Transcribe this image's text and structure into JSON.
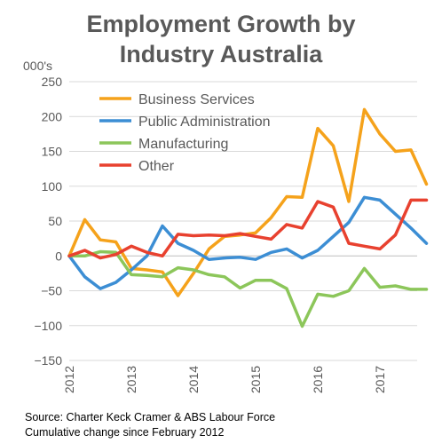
{
  "chart_data": {
    "type": "line",
    "title_line1": "Employment Growth by",
    "title_line2": "Industry Australia",
    "y_unit_label": "000's",
    "ylim": [
      -150,
      250
    ],
    "yticks": [
      250,
      200,
      150,
      100,
      50,
      0,
      -50,
      -100,
      -150
    ],
    "ytick_labels": [
      "250",
      "200",
      "150",
      "100",
      "50",
      "0",
      "−50",
      "−100",
      "−150"
    ],
    "x_start": 2012.0,
    "xlim": [
      2012.0,
      2017.6
    ],
    "x_tick_labels": [
      "2012",
      "2013",
      "2014",
      "2015",
      "2016",
      "2017"
    ],
    "x_tick_values": [
      2012,
      2013,
      2014,
      2015,
      2016,
      2017
    ],
    "grid": true,
    "legend_position": "upper-left",
    "x_step": 0.25,
    "series": [
      {
        "name": "Business Services",
        "color": "#F5A21B",
        "values": [
          0,
          52,
          23,
          20,
          -18,
          -20,
          -23,
          -57,
          -25,
          10,
          28,
          30,
          33,
          55,
          85,
          84,
          183,
          158,
          78,
          210,
          175,
          150,
          152,
          103
        ]
      },
      {
        "name": "Public Administration",
        "color": "#3C8ED4",
        "values": [
          0,
          -30,
          -47,
          -38,
          -20,
          0,
          43,
          18,
          8,
          -5,
          -3,
          -2,
          -5,
          5,
          10,
          -3,
          8,
          28,
          48,
          84,
          80,
          60,
          40,
          18
        ]
      },
      {
        "name": "Manufacturing",
        "color": "#8CC65A",
        "values": [
          0,
          0,
          6,
          5,
          -27,
          -28,
          -30,
          -17,
          -20,
          -27,
          -30,
          -46,
          -35,
          -35,
          -47,
          -101,
          -55,
          -58,
          -50,
          -18,
          -45,
          -43,
          -48,
          -48
        ]
      },
      {
        "name": "Other",
        "color": "#E8412F",
        "values": [
          0,
          8,
          -3,
          2,
          14,
          5,
          0,
          31,
          29,
          30,
          29,
          32,
          28,
          24,
          45,
          40,
          78,
          70,
          18,
          14,
          10,
          30,
          80,
          80
        ]
      }
    ]
  },
  "footer": {
    "source_line1": "Source: Charter Keck Cramer & ABS Labour Force",
    "source_line2": "Cumulative change since February 2012"
  },
  "colors": {
    "text": "#595959",
    "grid": "#D9D9D9",
    "axis": "#BFBFBF"
  }
}
